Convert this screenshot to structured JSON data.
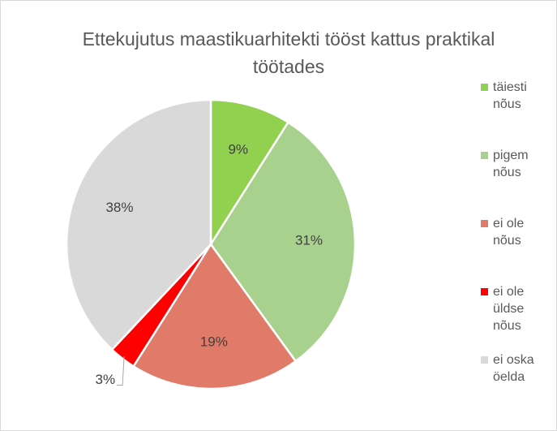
{
  "chart_data": {
    "type": "pie",
    "title": "Ettekujutus maastikuarhitekti tööst kattus praktikal töötades",
    "categories": [
      "täiesti nõus",
      "pigem nõus",
      "ei ole nõus",
      "ei ole üldse nõus",
      "ei oska öelda"
    ],
    "values": [
      9,
      31,
      19,
      3,
      38
    ],
    "value_labels": [
      "9%",
      "31%",
      "19%",
      "3%",
      "38%"
    ],
    "colors": [
      "#92d050",
      "#a9d18e",
      "#e07b6a",
      "#ff0000",
      "#d9d9d9"
    ],
    "legend": "right"
  }
}
